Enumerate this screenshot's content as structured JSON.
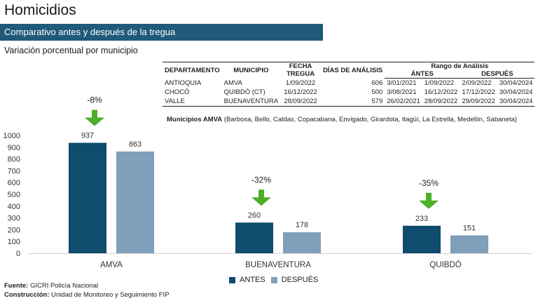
{
  "header": {
    "title": "Homicidios",
    "banner": "Comparativo antes y después de la tregua",
    "subtitle": "Variación porcentual por municipio"
  },
  "info_table": {
    "headers": {
      "departamento": "DEPARTAMENTO",
      "municipio": "MUNICIPIO",
      "fecha_tregua": "FECHA TREGUA",
      "dias": "DÍAS DE ANÁLISIS",
      "rango": "Rango de Análisis",
      "antes": "ÁNTES",
      "despues": "DESPUÉS"
    },
    "rows": [
      {
        "dep": "ANTIOQUIA",
        "mun": "AMVA",
        "fecha": "1/09/2022",
        "dias": "606",
        "antes_ini": "3/01/2021",
        "antes_fin": "1/09/2022",
        "desp_ini": "2/09/2022",
        "desp_fin": "30/04/2024"
      },
      {
        "dep": "CHOCÓ",
        "mun": "QUIBDÓ (CT)",
        "fecha": "16/12/2022",
        "dias": "500",
        "antes_ini": "3/08/2021",
        "antes_fin": "16/12/2022",
        "desp_ini": "17/12/2022",
        "desp_fin": "30/04/2024"
      },
      {
        "dep": "VALLE",
        "mun": "BUENAVENTURA",
        "fecha": "28/09/2022",
        "dias": "579",
        "antes_ini": "26/02/2021",
        "antes_fin": "28/09/2022",
        "desp_ini": "29/09/2022",
        "desp_fin": "30/04/2024"
      }
    ],
    "note_bold": "Municipios AMVA",
    "note_rest": "(Barbosa, Bello, Caldas, Copacabana, Envigado, Girardota, Itagüí, La Estrella, Medellín, Sabaneta)"
  },
  "chart_data": {
    "type": "bar",
    "categories": [
      "AMVA",
      "BUENAVENTURA",
      "QUIBDÓ"
    ],
    "series": [
      {
        "name": "ANTES",
        "values": [
          937,
          260,
          233
        ],
        "color": "#0f4c6e"
      },
      {
        "name": "DESPUÉS",
        "values": [
          863,
          178,
          151
        ],
        "color": "#7f9fba"
      }
    ],
    "changes": [
      "-8%",
      "-32%",
      "-35%"
    ],
    "yticks": [
      0,
      100,
      200,
      300,
      400,
      500,
      600,
      700,
      800,
      900,
      1000
    ],
    "ylim": [
      0,
      1000
    ],
    "legend_position": "bottom",
    "arrow_color": "#4caf26"
  },
  "footer": {
    "fuente_label": "Fuente:",
    "fuente_value": "GICRI Policía Nacional",
    "construccion_label": "Construcción:",
    "construccion_value": "Unidad de Monitoreo y Seguimiento FIP"
  }
}
